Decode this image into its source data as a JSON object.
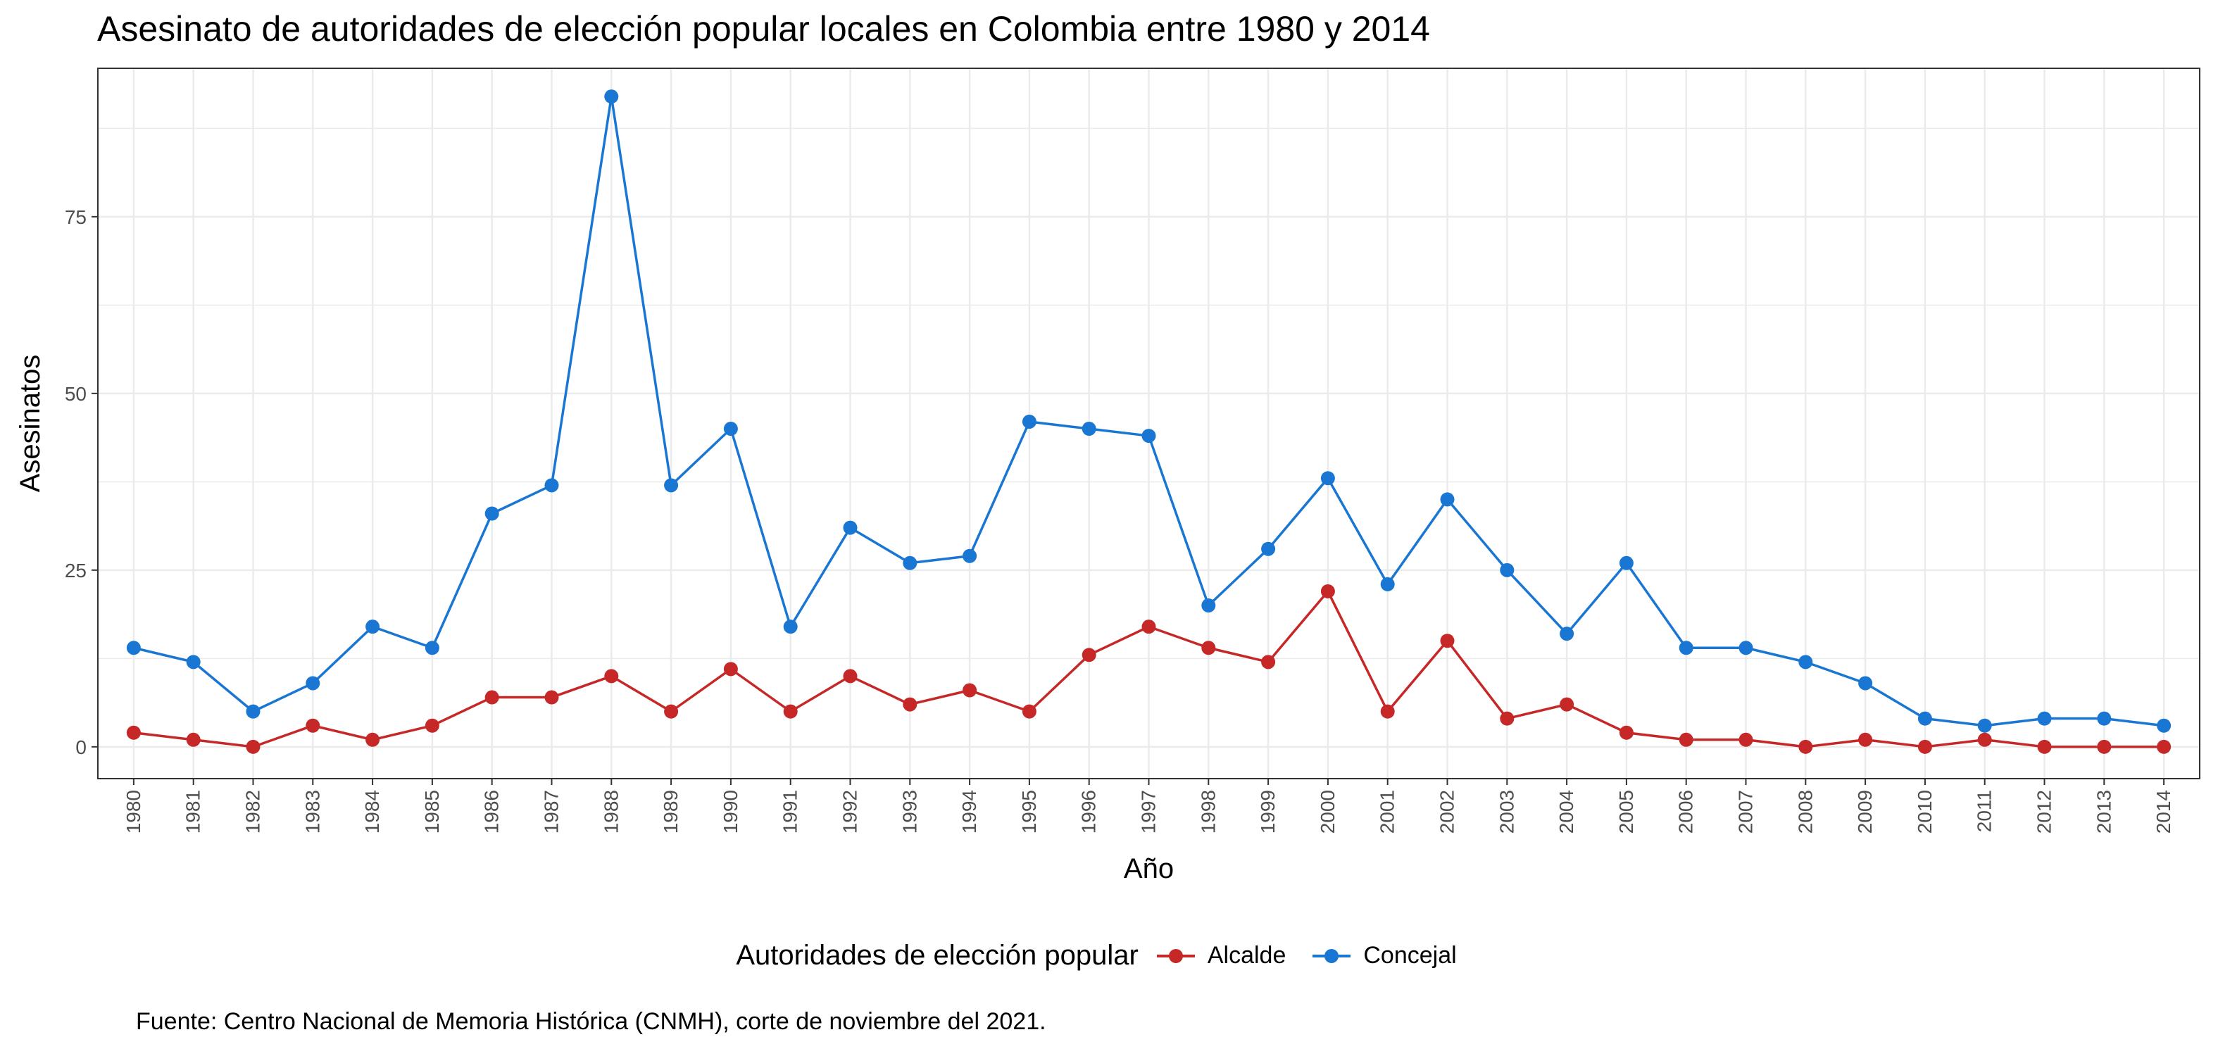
{
  "chart_data": {
    "type": "line",
    "title": "Asesinato de autoridades de elección popular locales en Colombia entre 1980 y 2014",
    "xlabel": "Año",
    "ylabel": "Asesinatos",
    "ylim": [
      -4.5,
      96
    ],
    "yticks": [
      0,
      25,
      50,
      75
    ],
    "categories": [
      "1980",
      "1981",
      "1982",
      "1983",
      "1984",
      "1985",
      "1986",
      "1987",
      "1988",
      "1989",
      "1990",
      "1991",
      "1992",
      "1993",
      "1994",
      "1995",
      "1996",
      "1997",
      "1998",
      "1999",
      "2000",
      "2001",
      "2002",
      "2003",
      "2004",
      "2005",
      "2006",
      "2007",
      "2008",
      "2009",
      "2010",
      "2011",
      "2012",
      "2013",
      "2014"
    ],
    "legend_title": "Autoridades de elección popular",
    "legend_position": "bottom",
    "grid": true,
    "series": [
      {
        "name": "Alcalde",
        "color": "#c62828",
        "values": [
          2,
          1,
          0,
          3,
          1,
          3,
          7,
          7,
          10,
          5,
          11,
          5,
          10,
          6,
          8,
          5,
          13,
          17,
          14,
          12,
          22,
          5,
          15,
          4,
          6,
          2,
          1,
          1,
          0,
          1,
          0,
          1,
          0,
          0,
          0
        ]
      },
      {
        "name": "Concejal",
        "color": "#1976d2",
        "values": [
          14,
          12,
          5,
          9,
          17,
          14,
          33,
          37,
          92,
          37,
          45,
          17,
          31,
          26,
          27,
          46,
          45,
          44,
          20,
          28,
          38,
          23,
          35,
          25,
          16,
          26,
          14,
          14,
          12,
          9,
          4,
          3,
          4,
          4,
          3
        ]
      }
    ],
    "caption": "Fuente: Centro Nacional de Memoria Histórica (CNMH), corte de noviembre del 2021."
  }
}
